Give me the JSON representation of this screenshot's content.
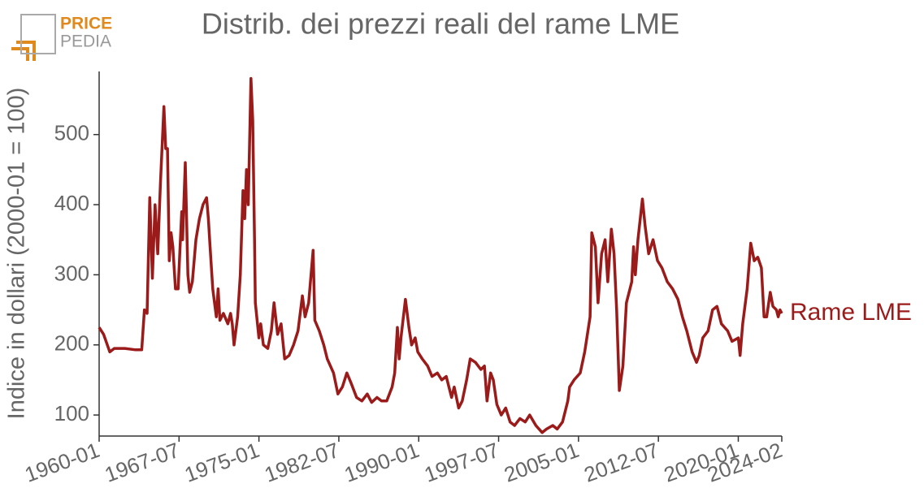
{
  "logo": {
    "top": "PRICE",
    "bottom": "PEDIA"
  },
  "chart_data": {
    "type": "line",
    "title": "Distrib. dei prezzi reali del rame LME",
    "y_label": "Indice in dollari (2000-01 = 100)",
    "xlim": [
      "1960-01",
      "2024-02"
    ],
    "xticks": [
      "1960-01",
      "1967-07",
      "1975-01",
      "1982-07",
      "1990-01",
      "1997-07",
      "2005-01",
      "2012-07",
      "2020-01",
      "2024-02"
    ],
    "ylim": [
      70,
      590
    ],
    "yticks": [
      100,
      200,
      300,
      400,
      500
    ],
    "grid": false,
    "x": [
      "1960-01",
      "1960-06",
      "1961-01",
      "1961-06",
      "1962-06",
      "1963-06",
      "1964-01",
      "1964-04",
      "1964-07",
      "1964-10",
      "1965-01",
      "1965-04",
      "1965-07",
      "1965-10",
      "1966-02",
      "1966-04",
      "1966-06",
      "1966-08",
      "1966-10",
      "1966-12",
      "1967-03",
      "1967-06",
      "1967-10",
      "1967-11",
      "1968-02",
      "1968-05",
      "1968-07",
      "1968-10",
      "1969-02",
      "1969-06",
      "1969-10",
      "1970-02",
      "1970-04",
      "1970-06",
      "1970-09",
      "1971-01",
      "1971-03",
      "1971-05",
      "1971-09",
      "1972-02",
      "1972-05",
      "1972-07",
      "1972-09",
      "1973-01",
      "1973-04",
      "1973-07",
      "1973-09",
      "1973-11",
      "1974-01",
      "1974-04",
      "1974-06",
      "1974-08",
      "1974-09",
      "1975-01",
      "1975-03",
      "1975-06",
      "1975-11",
      "1976-03",
      "1976-06",
      "1976-10",
      "1977-02",
      "1977-06",
      "1977-11",
      "1978-04",
      "1978-09",
      "1979-02",
      "1979-05",
      "1979-09",
      "1980-02",
      "1980-04",
      "1980-09",
      "1981-02",
      "1981-06",
      "1982-01",
      "1982-06",
      "1982-11",
      "1983-04",
      "1983-09",
      "1984-03",
      "1984-09",
      "1985-03",
      "1985-08",
      "1986-02",
      "1986-07",
      "1987-01",
      "1987-07",
      "1987-10",
      "1988-01",
      "1988-03",
      "1988-05",
      "1988-10",
      "1989-02",
      "1989-05",
      "1989-09",
      "1989-12",
      "1990-05",
      "1990-11",
      "1991-04",
      "1991-10",
      "1992-03",
      "1992-08",
      "1993-02",
      "1993-05",
      "1993-10",
      "1994-02",
      "1994-07",
      "1994-11",
      "1995-05",
      "1995-11",
      "1996-03",
      "1996-06",
      "1996-10",
      "1997-01",
      "1997-05",
      "1997-10",
      "1998-03",
      "1998-08",
      "1999-01",
      "1999-07",
      "2000-01",
      "2000-06",
      "2001-01",
      "2001-08",
      "2002-01",
      "2002-08",
      "2003-01",
      "2003-07",
      "2004-01",
      "2004-03",
      "2004-08",
      "2005-03",
      "2005-08",
      "2006-02",
      "2006-04",
      "2006-08",
      "2006-11",
      "2007-03",
      "2007-07",
      "2007-10",
      "2008-02",
      "2008-05",
      "2008-08",
      "2008-11",
      "2009-03",
      "2009-07",
      "2010-01",
      "2010-03",
      "2010-05",
      "2010-08",
      "2011-01",
      "2011-04",
      "2011-08",
      "2012-01",
      "2012-06",
      "2012-11",
      "2013-05",
      "2013-11",
      "2014-05",
      "2014-10",
      "2015-03",
      "2015-09",
      "2016-02",
      "2016-05",
      "2016-09",
      "2017-03",
      "2017-08",
      "2018-01",
      "2018-06",
      "2019-01",
      "2019-06",
      "2020-01",
      "2020-03",
      "2020-06",
      "2020-11",
      "2021-03",
      "2021-07",
      "2021-11",
      "2022-03",
      "2022-06",
      "2022-09",
      "2023-01",
      "2023-04",
      "2023-08",
      "2023-10",
      "2023-12",
      "2024-02"
    ],
    "series": [
      {
        "name": "Rame LME",
        "color": "#9b1b1b",
        "values": [
          225,
          215,
          190,
          195,
          195,
          193,
          193,
          250,
          245,
          410,
          295,
          400,
          330,
          430,
          540,
          480,
          480,
          320,
          360,
          340,
          280,
          280,
          390,
          350,
          460,
          300,
          275,
          290,
          350,
          380,
          400,
          410,
          380,
          340,
          280,
          240,
          280,
          235,
          245,
          230,
          245,
          230,
          200,
          240,
          300,
          420,
          380,
          450,
          400,
          580,
          520,
          350,
          260,
          210,
          230,
          200,
          195,
          220,
          260,
          215,
          230,
          180,
          185,
          200,
          220,
          270,
          240,
          260,
          335,
          235,
          220,
          200,
          180,
          160,
          130,
          140,
          160,
          145,
          125,
          120,
          130,
          118,
          125,
          120,
          120,
          140,
          160,
          225,
          180,
          210,
          265,
          225,
          200,
          210,
          190,
          180,
          170,
          155,
          160,
          150,
          155,
          125,
          140,
          110,
          120,
          150,
          180,
          175,
          165,
          170,
          120,
          160,
          150,
          115,
          100,
          110,
          90,
          85,
          95,
          90,
          100,
          85,
          75,
          80,
          85,
          80,
          90,
          120,
          140,
          150,
          160,
          190,
          240,
          360,
          340,
          260,
          330,
          350,
          290,
          365,
          330,
          250,
          135,
          170,
          260,
          290,
          340,
          300,
          350,
          408,
          370,
          330,
          350,
          320,
          310,
          290,
          280,
          265,
          240,
          220,
          190,
          175,
          185,
          210,
          220,
          250,
          255,
          230,
          220,
          205,
          210,
          185,
          230,
          280,
          345,
          320,
          325,
          310,
          240,
          240,
          275,
          255,
          250,
          240,
          250,
          245
        ]
      }
    ]
  }
}
